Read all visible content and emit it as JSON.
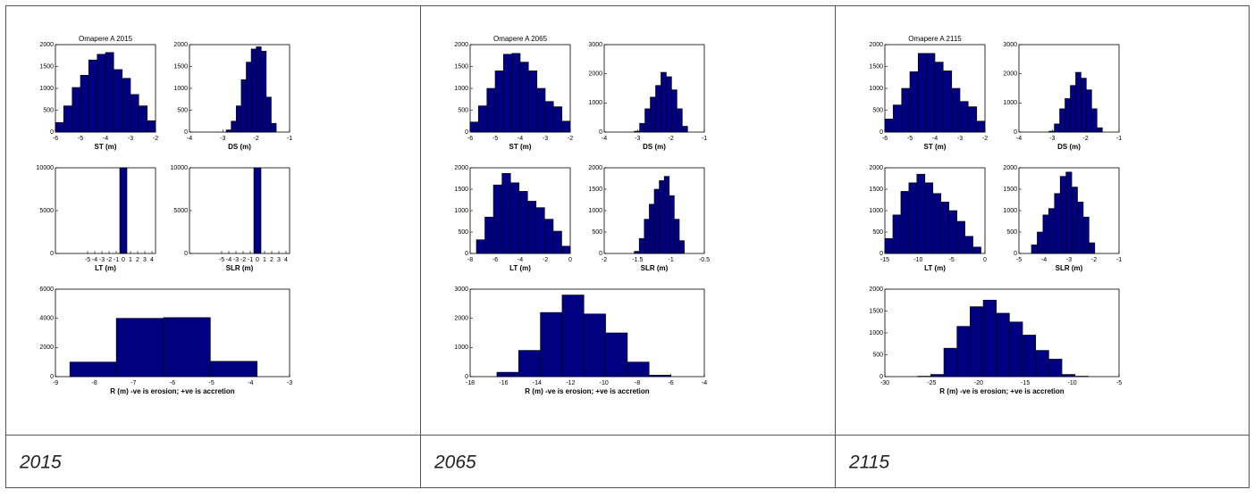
{
  "chart_data": [
    {
      "type": "histogram",
      "title": "Omapere A 2015",
      "xlabel": "ST (m)",
      "color": "#000080",
      "bins": [
        -6,
        -5.67,
        -5.33,
        -5,
        -4.67,
        -4.33,
        -4,
        -3.67,
        -3.33,
        -3,
        -2.67,
        -2.33,
        -2
      ],
      "values": [
        220,
        600,
        1020,
        1300,
        1650,
        1780,
        1820,
        1430,
        1230,
        860,
        600,
        260
      ],
      "xlim": [
        -6,
        -2
      ],
      "xticks": [
        -6,
        -5,
        -4,
        -3,
        -2
      ],
      "ylim": [
        0,
        2000
      ],
      "yticks": [
        0,
        500,
        1000,
        1500,
        2000
      ]
    },
    {
      "type": "histogram",
      "xlabel": "DS (m)",
      "color": "#000080",
      "bins": [
        -2.9,
        -2.75,
        -2.6,
        -2.45,
        -2.3,
        -2.15,
        -2,
        -1.85,
        -1.7,
        -1.55,
        -1.4
      ],
      "values": [
        50,
        250,
        600,
        1200,
        1600,
        1900,
        1950,
        1850,
        800,
        200
      ],
      "xlim": [
        -4,
        -1
      ],
      "xticks": [
        -4,
        -3,
        -2,
        -1
      ],
      "ylim": [
        0,
        2000
      ],
      "yticks": [
        0,
        500,
        1000,
        1500,
        2000
      ]
    },
    {
      "type": "histogram",
      "xlabel": "LT (m)",
      "color": "#000080",
      "bins": [
        -0.5,
        0.5
      ],
      "values": [
        10000
      ],
      "xlim": [
        -9.5,
        4.5
      ],
      "xticks": [
        -5,
        -4,
        -3,
        -2,
        -1,
        0,
        1,
        2,
        3,
        4
      ],
      "ylim": [
        0,
        10000
      ],
      "yticks": [
        0,
        5000,
        10000
      ]
    },
    {
      "type": "histogram",
      "xlabel": "SLR (m)",
      "color": "#000080",
      "bins": [
        -0.5,
        0.5
      ],
      "values": [
        10000
      ],
      "xlim": [
        -9.5,
        4.5
      ],
      "xticks": [
        -5,
        -4,
        -3,
        -2,
        -1,
        0,
        1,
        2,
        3,
        4
      ],
      "ylim": [
        0,
        10000
      ],
      "yticks": [
        0,
        5000,
        10000
      ]
    },
    {
      "type": "histogram",
      "xlabel": "R (m) -ve is erosion; +ve is accretion",
      "color": "#000080",
      "bins": [
        -8.63,
        -7.44,
        -6.23,
        -5.03,
        -3.83
      ],
      "values": [
        1000,
        4000,
        4050,
        1050
      ],
      "xlim": [
        -9,
        -3
      ],
      "xticks": [
        -9,
        -8,
        -7,
        -6,
        -5,
        -4,
        -3
      ],
      "ylim": [
        0,
        6000
      ],
      "yticks": [
        0,
        2000,
        4000,
        6000
      ]
    },
    {
      "type": "histogram",
      "title": "Omapere A 2065",
      "xlabel": "ST (m)",
      "color": "#000080",
      "bins": [
        -6,
        -5.67,
        -5.33,
        -5,
        -4.67,
        -4.33,
        -4,
        -3.67,
        -3.33,
        -3,
        -2.67,
        -2.33,
        -2
      ],
      "values": [
        230,
        600,
        1000,
        1400,
        1780,
        1800,
        1600,
        1400,
        1000,
        700,
        580,
        250
      ],
      "xlim": [
        -6,
        -2
      ],
      "xticks": [
        -6,
        -5,
        -4,
        -3,
        -2
      ],
      "ylim": [
        0,
        2000
      ],
      "yticks": [
        0,
        500,
        1000,
        1500,
        2000
      ]
    },
    {
      "type": "histogram",
      "xlabel": "DS (m)",
      "color": "#000080",
      "bins": [
        -3.1,
        -2.94,
        -2.78,
        -2.62,
        -2.46,
        -2.3,
        -2.14,
        -1.98,
        -1.82,
        -1.66,
        -1.5
      ],
      "values": [
        30,
        300,
        800,
        1200,
        1600,
        2050,
        1900,
        1450,
        800,
        200
      ],
      "xlim": [
        -4,
        -1
      ],
      "xticks": [
        -4,
        -3,
        -2,
        -1
      ],
      "ylim": [
        0,
        3000
      ],
      "yticks": [
        0,
        1000,
        2000,
        3000
      ]
    },
    {
      "type": "histogram",
      "xlabel": "LT (m)",
      "color": "#000080",
      "bins": [
        -7.5,
        -6.82,
        -6.14,
        -5.45,
        -4.77,
        -4.09,
        -3.41,
        -2.73,
        -2.05,
        -1.36,
        -0.68,
        0
      ],
      "values": [
        320,
        850,
        1600,
        1870,
        1650,
        1450,
        1220,
        1070,
        800,
        520,
        170
      ],
      "xlim": [
        -8,
        0
      ],
      "xticks": [
        -8,
        -6,
        -4,
        -2,
        0
      ],
      "ylim": [
        0,
        2000
      ],
      "yticks": [
        0,
        500,
        1000,
        1500,
        2000
      ]
    },
    {
      "type": "histogram",
      "xlabel": "SLR (m)",
      "color": "#000080",
      "bins": [
        -1.55,
        -1.475,
        -1.4,
        -1.325,
        -1.25,
        -1.175,
        -1.1,
        -1.025,
        -0.95,
        -0.875,
        -0.8
      ],
      "values": [
        50,
        350,
        800,
        1150,
        1500,
        1700,
        1800,
        1350,
        800,
        300
      ],
      "xlim": [
        -2,
        -0.5
      ],
      "xticks": [
        -2,
        -1.5,
        -1,
        -0.5
      ],
      "ylim": [
        0,
        2000
      ],
      "yticks": [
        0,
        500,
        1000,
        1500,
        2000
      ]
    },
    {
      "type": "histogram",
      "xlabel": "R (m) -ve is erosion; +ve is accretion",
      "color": "#000080",
      "bins": [
        -16.4,
        -15.1,
        -13.8,
        -12.5,
        -11.2,
        -9.9,
        -8.6,
        -7.3,
        -6
      ],
      "values": [
        150,
        900,
        2200,
        2800,
        2150,
        1500,
        500,
        50
      ],
      "xlim": [
        -18,
        -4
      ],
      "xticks": [
        -18,
        -16,
        -14,
        -12,
        -10,
        -8,
        -6,
        -4
      ],
      "ylim": [
        0,
        3000
      ],
      "yticks": [
        0,
        1000,
        2000,
        3000
      ]
    },
    {
      "type": "histogram",
      "title": "Omapere A 2115",
      "xlabel": "ST (m)",
      "color": "#000080",
      "bins": [
        -6,
        -5.67,
        -5.33,
        -5,
        -4.67,
        -4.33,
        -4,
        -3.67,
        -3.33,
        -3,
        -2.67,
        -2.33,
        -2
      ],
      "values": [
        300,
        620,
        1000,
        1380,
        1800,
        1800,
        1600,
        1400,
        1000,
        700,
        580,
        250
      ],
      "xlim": [
        -6,
        -2
      ],
      "xticks": [
        -6,
        -5,
        -4,
        -3,
        -2
      ],
      "ylim": [
        0,
        2000
      ],
      "yticks": [
        0,
        500,
        1000,
        1500,
        2000
      ]
    },
    {
      "type": "histogram",
      "xlabel": "DS (m)",
      "color": "#000080",
      "bins": [
        -3.1,
        -2.94,
        -2.78,
        -2.62,
        -2.46,
        -2.3,
        -2.14,
        -1.98,
        -1.82,
        -1.66,
        -1.5
      ],
      "values": [
        30,
        280,
        800,
        1150,
        1600,
        2050,
        1850,
        1450,
        800,
        150
      ],
      "xlim": [
        -4,
        -1
      ],
      "xticks": [
        -4,
        -3,
        -2,
        -1
      ],
      "ylim": [
        0,
        3000
      ],
      "yticks": [
        0,
        1000,
        2000,
        3000
      ]
    },
    {
      "type": "histogram",
      "xlabel": "LT (m)",
      "color": "#000080",
      "bins": [
        -15,
        -13.8,
        -12.6,
        -11.4,
        -10.2,
        -9,
        -7.8,
        -6.6,
        -5.4,
        -4.2,
        -3,
        -1.8,
        -0.6
      ],
      "values": [
        350,
        900,
        1450,
        1650,
        1850,
        1650,
        1400,
        1200,
        1000,
        750,
        400,
        150
      ],
      "xlim": [
        -15,
        0
      ],
      "xticks": [
        -15,
        -10,
        -5,
        0
      ],
      "ylim": [
        0,
        2000
      ],
      "yticks": [
        0,
        500,
        1000,
        1500,
        2000
      ]
    },
    {
      "type": "histogram",
      "xlabel": "SLR (m)",
      "color": "#000080",
      "bins": [
        -4.5,
        -4.27,
        -4.04,
        -3.81,
        -3.58,
        -3.35,
        -3.12,
        -2.89,
        -2.66,
        -2.43,
        -2.2,
        -1.97
      ],
      "values": [
        200,
        500,
        900,
        1050,
        1400,
        1800,
        1900,
        1550,
        1200,
        850,
        250
      ],
      "xlim": [
        -5,
        -1
      ],
      "xticks": [
        -5,
        -4,
        -3,
        -2,
        -1
      ],
      "ylim": [
        0,
        2000
      ],
      "yticks": [
        0,
        500,
        1000,
        1500,
        2000
      ]
    },
    {
      "type": "histogram",
      "xlabel": "R (m) -ve is erosion; +ve is accretion",
      "color": "#000080",
      "bins": [
        -26.5,
        -25.1,
        -23.7,
        -22.3,
        -20.9,
        -19.5,
        -18.1,
        -16.7,
        -15.3,
        -13.9,
        -12.5,
        -11.1,
        -9.7,
        -8.3
      ],
      "values": [
        10,
        50,
        650,
        1150,
        1600,
        1750,
        1450,
        1250,
        950,
        600,
        400,
        50,
        10
      ],
      "xlim": [
        -30,
        -5
      ],
      "xticks": [
        -30,
        -25,
        -20,
        -15,
        -10,
        -5
      ],
      "ylim": [
        0,
        2000
      ],
      "yticks": [
        0,
        500,
        1000,
        1500,
        2000
      ]
    }
  ],
  "captions": [
    "2015",
    "2065",
    "2115"
  ]
}
